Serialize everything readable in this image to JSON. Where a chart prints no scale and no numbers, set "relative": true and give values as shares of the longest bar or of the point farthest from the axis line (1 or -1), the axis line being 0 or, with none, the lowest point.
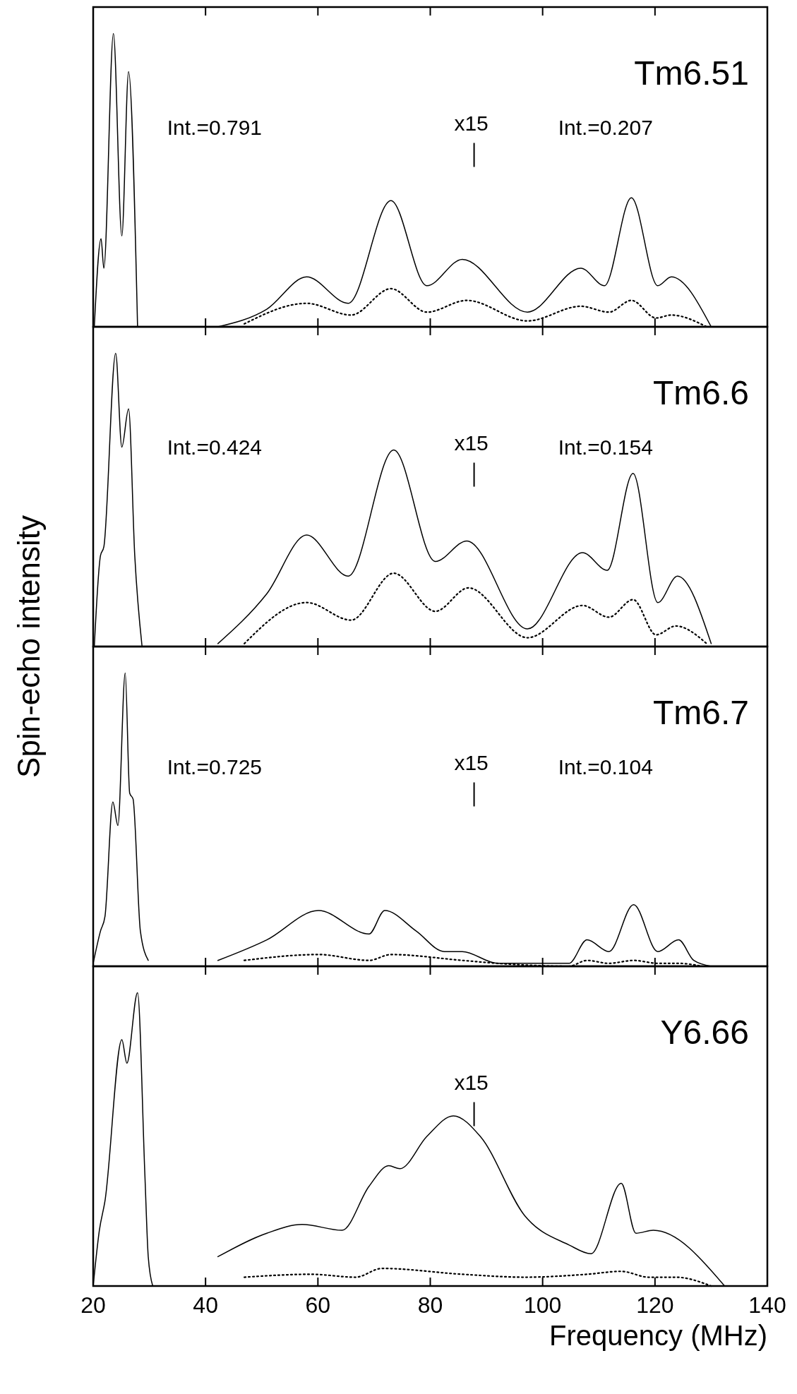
{
  "chart_data": [
    {
      "type": "line",
      "title": "Tm6.51",
      "relative": true,
      "xlim": [
        20,
        140
      ],
      "xticks": [
        20,
        40,
        60,
        80,
        100,
        120,
        140
      ],
      "tick_labels": false,
      "annotations": [
        "Int.=0.791",
        "Int.=0.207",
        "x15"
      ],
      "series": [
        {
          "color": "#000000",
          "line_style": "solid",
          "x": [
            20.2,
            21.4,
            21.9,
            23.6,
            25.1,
            26.3,
            27.9
          ],
          "values": [
            0,
            0.3,
            0.2,
            1,
            0.31,
            0.87,
            0
          ]
        },
        {
          "color": "#000000",
          "line_style": "solid",
          "x": [
            42.2,
            50.9,
            58.0,
            65.4,
            73.0,
            79.4,
            85.7,
            97.3,
            106.8,
            111.0,
            115.8,
            120.5,
            122.9,
            130.0
          ],
          "values": [
            0,
            0.06,
            0.17,
            0.08,
            0.43,
            0.14,
            0.23,
            0.05,
            0.2,
            0.14,
            0.44,
            0.14,
            0.17,
            0
          ]
        },
        {
          "color": "#000000",
          "line_style": "dotted",
          "x": [
            46.9,
            58.0,
            65.9,
            73.0,
            79.4,
            86.5,
            97.3,
            106.8,
            111.8,
            115.8,
            120.2,
            122.9,
            129.2
          ],
          "values": [
            0.01,
            0.08,
            0.04,
            0.13,
            0.05,
            0.09,
            0.02,
            0.07,
            0.05,
            0.09,
            0.03,
            0.04,
            0
          ]
        }
      ]
    },
    {
      "type": "line",
      "title": "Tm6.6",
      "ylabel": "Spin-echo intensity",
      "relative": true,
      "xlim": [
        20,
        140
      ],
      "xticks": [
        20,
        40,
        60,
        80,
        100,
        120,
        140
      ],
      "tick_labels": false,
      "annotations": [
        "Int.=0.424",
        "Int.=0.154",
        "x15"
      ],
      "series": [
        {
          "color": "#000000",
          "line_style": "solid",
          "x": [
            20.2,
            21.3,
            21.9,
            24.0,
            25.1,
            26.3,
            27.4,
            28.7
          ],
          "values": [
            0,
            0.31,
            0.34,
            1,
            0.68,
            0.81,
            0.31,
            0
          ]
        },
        {
          "color": "#000000",
          "line_style": "solid",
          "x": [
            42.2,
            50.9,
            58.0,
            65.4,
            73.5,
            80.9,
            86.5,
            97.3,
            107.1,
            111.5,
            116.1,
            120.5,
            124.0,
            130.0
          ],
          "values": [
            0.01,
            0.18,
            0.38,
            0.24,
            0.67,
            0.29,
            0.36,
            0.06,
            0.32,
            0.26,
            0.59,
            0.15,
            0.24,
            0.01
          ]
        },
        {
          "color": "#000000",
          "line_style": "dotted",
          "x": [
            46.9,
            58.0,
            65.9,
            73.5,
            80.9,
            86.8,
            97.3,
            107.1,
            111.8,
            116.1,
            120.2,
            123.7,
            129.2
          ],
          "values": [
            0.01,
            0.15,
            0.09,
            0.25,
            0.12,
            0.2,
            0.03,
            0.14,
            0.1,
            0.16,
            0.04,
            0.07,
            0.01
          ]
        }
      ]
    },
    {
      "type": "line",
      "title": "Tm6.7",
      "relative": true,
      "xlim": [
        20,
        140
      ],
      "xticks": [
        20,
        40,
        60,
        80,
        100,
        120,
        140
      ],
      "tick_labels": false,
      "annotations": [
        "Int.=0.725",
        "Int.=0.104",
        "x15"
      ],
      "series": [
        {
          "color": "#000000",
          "line_style": "solid",
          "x": [
            20,
            21.3,
            22.1,
            23.5,
            24.4,
            25.7,
            26.5,
            27.1,
            28.4,
            29.8
          ],
          "values": [
            0.01,
            0.12,
            0.17,
            0.56,
            0.48,
            1,
            0.59,
            0.57,
            0.12,
            0.02
          ]
        },
        {
          "color": "#000000",
          "line_style": "solid",
          "x": [
            42.2,
            50.9,
            60.1,
            69.1,
            71.9,
            77.5,
            82.5,
            85.7,
            92.0,
            98.4,
            104.7,
            107.9,
            111.8,
            116.2,
            120.5,
            124.2,
            126.9,
            130.0
          ],
          "values": [
            0.02,
            0.09,
            0.19,
            0.11,
            0.19,
            0.12,
            0.05,
            0.05,
            0.01,
            0.01,
            0.01,
            0.09,
            0.05,
            0.21,
            0.05,
            0.09,
            0.02,
            0
          ]
        },
        {
          "color": "#000000",
          "line_style": "dotted",
          "x": [
            46.9,
            60.1,
            69.1,
            73.0,
            85.7,
            92.0,
            104.7,
            107.9,
            111.8,
            116.2,
            120.5,
            124.2,
            128.4
          ],
          "values": [
            0.02,
            0.04,
            0.02,
            0.04,
            0.02,
            0.01,
            0,
            0.02,
            0.01,
            0.02,
            0.01,
            0.01,
            0
          ]
        }
      ]
    },
    {
      "type": "line",
      "title": "Y6.66",
      "xlabel": "Frequency (MHz)",
      "relative": true,
      "xlim": [
        20,
        140
      ],
      "xticks": [
        20,
        40,
        60,
        80,
        100,
        120,
        140
      ],
      "tick_labels": "x",
      "annotations": [
        "x15"
      ],
      "series": [
        {
          "color": "#000000",
          "line_style": "solid",
          "x": [
            20,
            21.1,
            22.1,
            25.1,
            26.0,
            27.9,
            29.2,
            29.8,
            30.6
          ],
          "values": [
            0,
            0.19,
            0.29,
            0.84,
            0.76,
            1,
            0.38,
            0.1,
            0
          ]
        },
        {
          "color": "#000000",
          "line_style": "solid",
          "x": [
            42.2,
            50.9,
            57.2,
            64.3,
            69.1,
            72.6,
            74.6,
            79.4,
            84.1,
            88.9,
            96.8,
            104.7,
            108.6,
            114.0,
            116.6,
            119.7,
            132.4
          ],
          "values": [
            0.1,
            0.18,
            0.21,
            0.19,
            0.34,
            0.41,
            0.4,
            0.51,
            0.58,
            0.51,
            0.24,
            0.14,
            0.11,
            0.35,
            0.18,
            0.19,
            0
          ]
        },
        {
          "color": "#000000",
          "line_style": "dotted",
          "x": [
            46.9,
            58.8,
            66.7,
            71.4,
            85.7,
            96.8,
            107.9,
            114.0,
            118.9,
            123.7,
            130.0
          ],
          "values": [
            0.03,
            0.04,
            0.03,
            0.06,
            0.04,
            0.03,
            0.04,
            0.05,
            0.03,
            0.03,
            0
          ]
        }
      ]
    }
  ]
}
